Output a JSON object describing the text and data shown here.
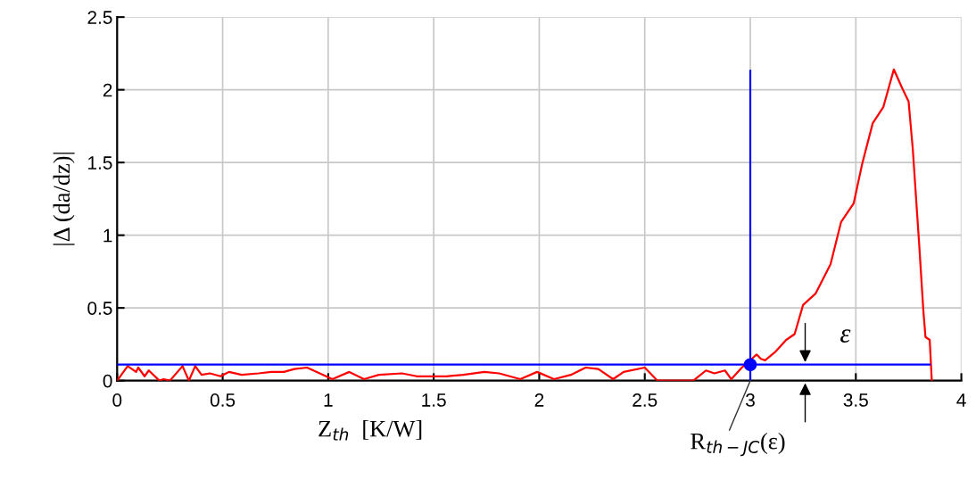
{
  "chart_data": {
    "type": "line",
    "xlabel": "Z$_{th}$  [K/W]",
    "ylabel": "|Δ (da/dz)|",
    "xlim": [
      0,
      4
    ],
    "xticks": [
      0,
      0.5,
      1,
      1.5,
      2,
      2.5,
      3,
      3.5,
      4
    ],
    "ylim": [
      0,
      2.5
    ],
    "yticks": [
      0,
      0.5,
      1,
      1.5,
      2,
      2.5
    ],
    "grid": true,
    "marker": "none",
    "line_style": "solid",
    "series": [
      {
        "color": "#ff0000",
        "x": [
          0,
          0.05,
          0.09,
          0.1,
          0.13,
          0.15,
          0.2,
          0.22,
          0.25,
          0.31,
          0.34,
          0.37,
          0.4,
          0.44,
          0.49,
          0.53,
          0.59,
          0.67,
          0.73,
          0.79,
          0.84,
          0.9,
          0.96,
          1.02,
          1.1,
          1.17,
          1.24,
          1.35,
          1.42,
          1.49,
          1.56,
          1.64,
          1.74,
          1.81,
          1.91,
          1.99,
          2.07,
          2.15,
          2.22,
          2.28,
          2.35,
          2.4,
          2.5,
          2.56,
          2.73,
          2.79,
          2.83,
          2.88,
          2.91,
          2.96,
          3.03,
          3.05,
          3.07,
          3.12,
          3.17,
          3.21,
          3.25,
          3.31,
          3.38,
          3.43,
          3.49,
          3.53,
          3.58,
          3.63,
          3.68,
          3.72,
          3.75,
          3.77,
          3.8,
          3.82,
          3.83,
          3.85,
          3.86
        ],
        "values": [
          0,
          0.1,
          0.06,
          0.09,
          0.03,
          0.07,
          0,
          0.01,
          0,
          0.1,
          0,
          0.1,
          0.04,
          0.05,
          0.03,
          0.06,
          0.04,
          0.05,
          0.06,
          0.06,
          0.08,
          0.09,
          0.05,
          0.01,
          0.06,
          0.01,
          0.04,
          0.05,
          0.03,
          0.03,
          0.03,
          0.04,
          0.06,
          0.05,
          0.01,
          0.06,
          0.01,
          0.04,
          0.09,
          0.08,
          0.01,
          0.06,
          0.09,
          0,
          0,
          0.07,
          0.05,
          0.07,
          0.01,
          0.09,
          0.18,
          0.15,
          0.14,
          0.2,
          0.28,
          0.32,
          0.52,
          0.6,
          0.8,
          1.09,
          1.22,
          1.49,
          1.77,
          1.88,
          2.14,
          2.01,
          1.92,
          1.59,
          0.94,
          0.48,
          0.3,
          0.28,
          0
        ]
      },
      {
        "color": "#0000ff",
        "x": [
          0,
          3.85
        ],
        "values": [
          0.11,
          0.11
        ]
      },
      {
        "color": "#0000ff",
        "x": [
          3,
          3
        ],
        "values": [
          0,
          2.13
        ]
      },
      {
        "type": "scatter",
        "color": "#0000ff",
        "marker": "circle",
        "x": [
          3
        ],
        "values": [
          0.11
        ]
      }
    ],
    "annotations": [
      {
        "text": "ε",
        "x": 3.26,
        "y": 0.11
      },
      {
        "text": "R$_{th−JC}$(ε)",
        "x": 3,
        "y": 0
      }
    ]
  }
}
